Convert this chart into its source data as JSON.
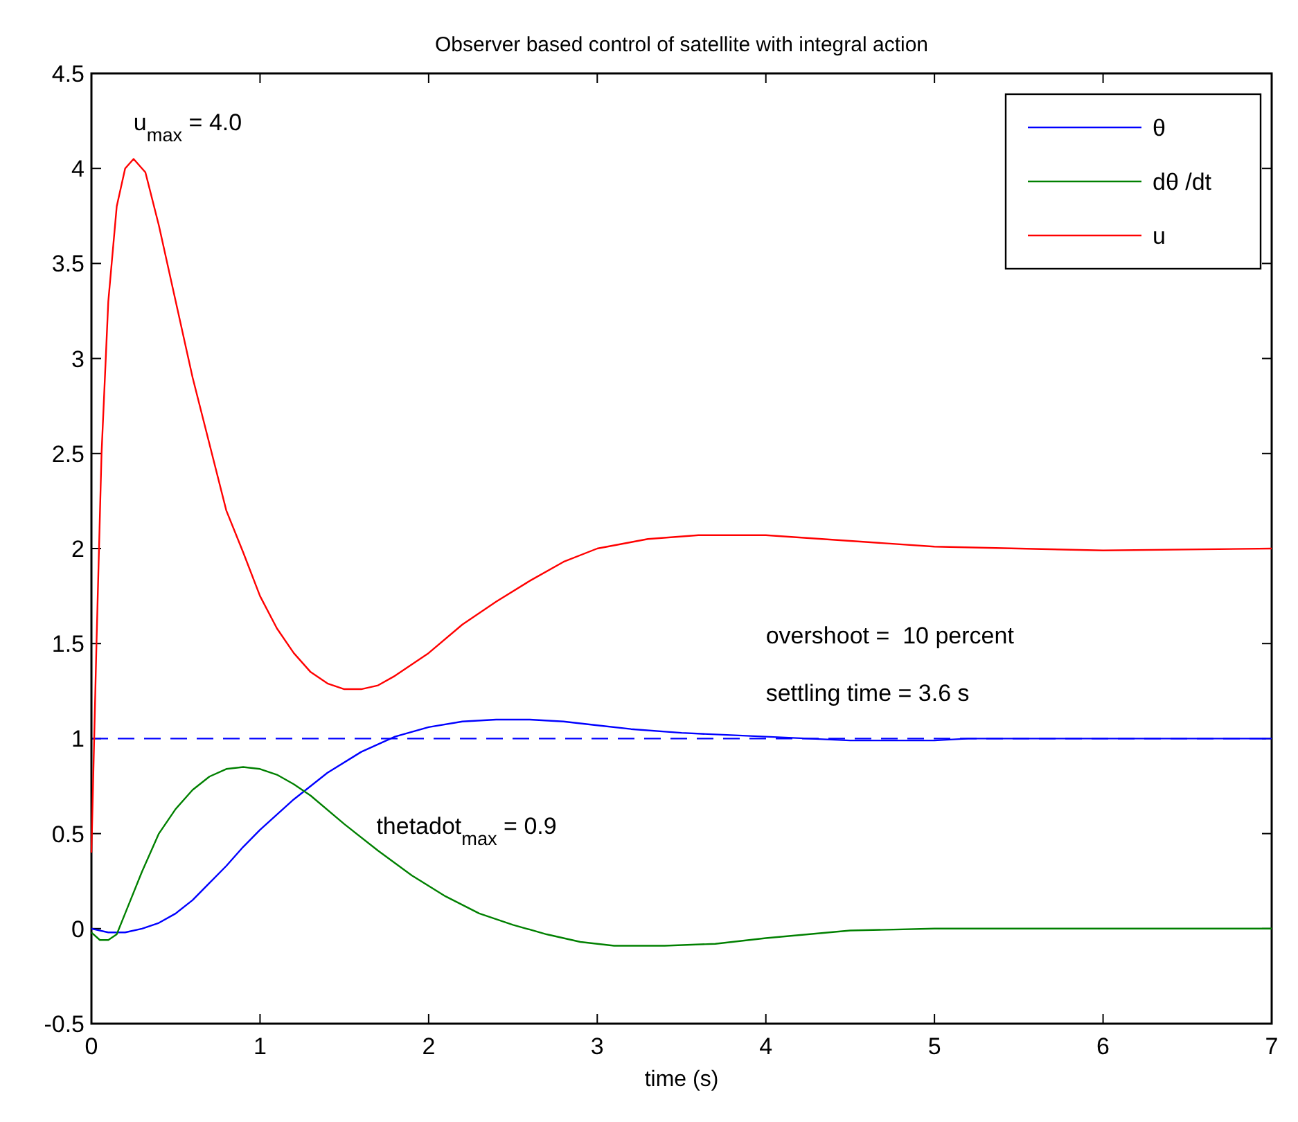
{
  "chart_data": {
    "type": "line",
    "title": "Observer based control of satellite with integral action",
    "xlabel": "time (s)",
    "xlim": [
      0,
      7
    ],
    "xticks": [
      0,
      1,
      2,
      3,
      4,
      5,
      6,
      7
    ],
    "ylim": [
      -0.5,
      4.5
    ],
    "yticks": [
      -0.5,
      0,
      0.5,
      1,
      1.5,
      2,
      2.5,
      3,
      3.5,
      4,
      4.5
    ],
    "grid": false,
    "legend": "top right",
    "marker": "none",
    "line_style": "solid",
    "series": [
      {
        "name": "θ",
        "color": "#0000ff",
        "x": [
          0,
          0.1,
          0.2,
          0.3,
          0.4,
          0.5,
          0.6,
          0.7,
          0.8,
          0.9,
          1.0,
          1.2,
          1.4,
          1.6,
          1.8,
          2.0,
          2.2,
          2.4,
          2.6,
          2.8,
          3.0,
          3.2,
          3.5,
          4.0,
          4.5,
          5.0,
          5.2,
          7.0
        ],
        "values": [
          0,
          -0.02,
          -0.02,
          0,
          0.03,
          0.08,
          0.15,
          0.24,
          0.33,
          0.43,
          0.52,
          0.68,
          0.82,
          0.93,
          1.01,
          1.06,
          1.09,
          1.1,
          1.1,
          1.09,
          1.07,
          1.05,
          1.03,
          1.01,
          0.99,
          0.99,
          1.0,
          1.0
        ]
      },
      {
        "name": "dθ /dt",
        "color": "#008000",
        "x": [
          0,
          0.05,
          0.1,
          0.15,
          0.2,
          0.3,
          0.4,
          0.5,
          0.6,
          0.7,
          0.8,
          0.9,
          1.0,
          1.1,
          1.2,
          1.3,
          1.5,
          1.7,
          1.9,
          2.1,
          2.3,
          2.5,
          2.7,
          2.9,
          3.1,
          3.4,
          3.7,
          4.0,
          4.5,
          5.0,
          7.0
        ],
        "values": [
          -0.02,
          -0.06,
          -0.06,
          -0.03,
          0.08,
          0.3,
          0.5,
          0.63,
          0.73,
          0.8,
          0.84,
          0.85,
          0.84,
          0.81,
          0.76,
          0.7,
          0.55,
          0.41,
          0.28,
          0.17,
          0.08,
          0.02,
          -0.03,
          -0.07,
          -0.09,
          -0.09,
          -0.08,
          -0.05,
          -0.01,
          0.0,
          0.0
        ]
      },
      {
        "name": "u",
        "color": "#ff0000",
        "x": [
          0,
          0.03,
          0.06,
          0.1,
          0.15,
          0.2,
          0.25,
          0.32,
          0.4,
          0.5,
          0.6,
          0.7,
          0.8,
          0.9,
          1.0,
          1.1,
          1.2,
          1.3,
          1.4,
          1.5,
          1.6,
          1.7,
          1.8,
          2.0,
          2.2,
          2.4,
          2.6,
          2.8,
          3.0,
          3.3,
          3.6,
          4.0,
          4.5,
          5.0,
          5.5,
          6.0,
          7.0
        ],
        "values": [
          0.4,
          1.5,
          2.5,
          3.3,
          3.8,
          4.0,
          4.05,
          3.98,
          3.7,
          3.3,
          2.9,
          2.55,
          2.2,
          1.98,
          1.75,
          1.58,
          1.45,
          1.35,
          1.29,
          1.26,
          1.26,
          1.28,
          1.33,
          1.45,
          1.6,
          1.72,
          1.83,
          1.93,
          2.0,
          2.05,
          2.07,
          2.07,
          2.04,
          2.01,
          2.0,
          1.99,
          2.0
        ]
      }
    ],
    "ref_lines": [
      {
        "axis": "y",
        "value": 1,
        "color": "#0000ff",
        "line_style": "dashed"
      }
    ],
    "annotations": [
      "u$_{max}$ = 4.0",
      "thetadot$_{max}$ = 0.9",
      "overshoot =  10 percent",
      "settling time = 3.6 s"
    ]
  }
}
